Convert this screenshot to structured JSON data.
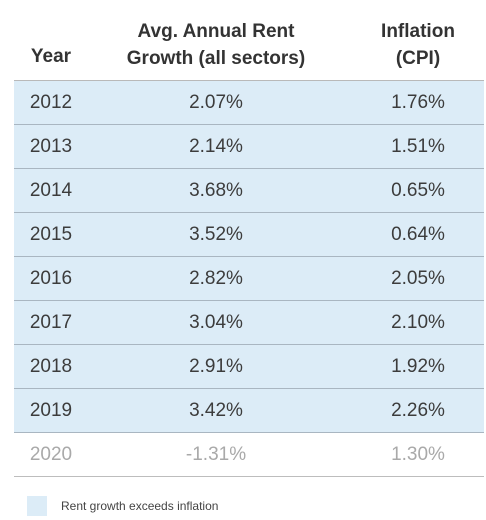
{
  "table": {
    "headers": {
      "year": "Year",
      "rent_line1": "Avg. Annual Rent",
      "rent_line2": "Growth (all sectors)",
      "inflation_line1": "Inflation",
      "inflation_line2": "(CPI)"
    },
    "rows": [
      {
        "year": "2012",
        "rent_growth": "2.07%",
        "inflation": "1.76%",
        "highlight": true
      },
      {
        "year": "2013",
        "rent_growth": "2.14%",
        "inflation": "1.51%",
        "highlight": true
      },
      {
        "year": "2014",
        "rent_growth": "3.68%",
        "inflation": "0.65%",
        "highlight": true
      },
      {
        "year": "2015",
        "rent_growth": "3.52%",
        "inflation": "0.64%",
        "highlight": true
      },
      {
        "year": "2016",
        "rent_growth": "2.82%",
        "inflation": "2.05%",
        "highlight": true
      },
      {
        "year": "2017",
        "rent_growth": "3.04%",
        "inflation": "2.10%",
        "highlight": true
      },
      {
        "year": "2018",
        "rent_growth": "2.91%",
        "inflation": "1.92%",
        "highlight": true
      },
      {
        "year": "2019",
        "rent_growth": "3.42%",
        "inflation": "2.26%",
        "highlight": true
      },
      {
        "year": "2020",
        "rent_growth": "-1.31%",
        "inflation": "1.30%",
        "highlight": false
      }
    ]
  },
  "legend": {
    "label": "Rent growth exceeds inflation",
    "color": "#dcecf7"
  },
  "colors": {
    "highlight": "#dcecf7",
    "muted_text": "#a9a9a9"
  },
  "chart_data": {
    "type": "table",
    "columns": [
      "Year",
      "Avg. Annual Rent Growth (all sectors)",
      "Inflation (CPI)"
    ],
    "rows": [
      [
        "2012",
        "2.07%",
        "1.76%"
      ],
      [
        "2013",
        "2.14%",
        "1.51%"
      ],
      [
        "2014",
        "3.68%",
        "0.65%"
      ],
      [
        "2015",
        "3.52%",
        "0.64%"
      ],
      [
        "2016",
        "2.82%",
        "2.05%"
      ],
      [
        "2017",
        "3.04%",
        "2.10%"
      ],
      [
        "2018",
        "2.91%",
        "1.92%"
      ],
      [
        "2019",
        "3.42%",
        "2.26%"
      ],
      [
        "2020",
        "-1.31%",
        "1.30%"
      ]
    ],
    "legend": [
      "Rent growth exceeds inflation"
    ]
  }
}
